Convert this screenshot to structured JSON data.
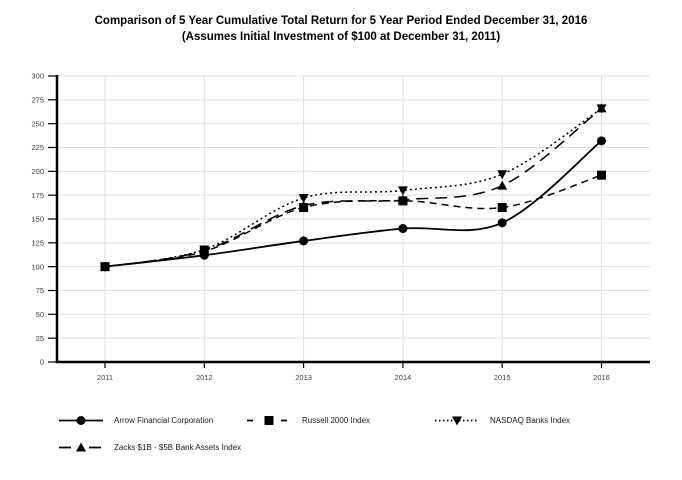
{
  "title": {
    "line1": "Comparison of 5 Year Cumulative Total Return for 5 Year Period Ended December 31, 2016",
    "line2": "(Assumes Initial Investment of $100 at December 31, 2011)"
  },
  "chart_data": {
    "type": "line",
    "x": [
      "2011",
      "2012",
      "2013",
      "2014",
      "2015",
      "2016"
    ],
    "series": [
      {
        "name": "Arrow Financial Corporation",
        "values": [
          100,
          112,
          127,
          140,
          146,
          232
        ],
        "line_style": "solid",
        "marker": "circle"
      },
      {
        "name": "Russell 2000 Index",
        "values": [
          100,
          116,
          162,
          169,
          162,
          196
        ],
        "line_style": "dashed",
        "marker": "square"
      },
      {
        "name": "NASDAQ Banks Index",
        "values": [
          100,
          118,
          172,
          180,
          197,
          266
        ],
        "line_style": "dotted",
        "marker": "triangle-down"
      },
      {
        "name": "Zacks $1B - $5B Bank Assets Index",
        "values": [
          100,
          117,
          164,
          170,
          185,
          266
        ],
        "line_style": "long-dash",
        "marker": "triangle-up"
      }
    ],
    "ylim": [
      0,
      300
    ],
    "y_ticks": [
      0,
      25,
      50,
      75,
      100,
      125,
      150,
      175,
      200,
      225,
      250,
      275,
      300
    ],
    "grid": true,
    "legend_position": "bottom-left"
  },
  "colors": {
    "series": "#000000",
    "grid": "#dedede",
    "axis": "#000000",
    "tick_label": "#3d3d3d",
    "background": "#ffffff"
  }
}
